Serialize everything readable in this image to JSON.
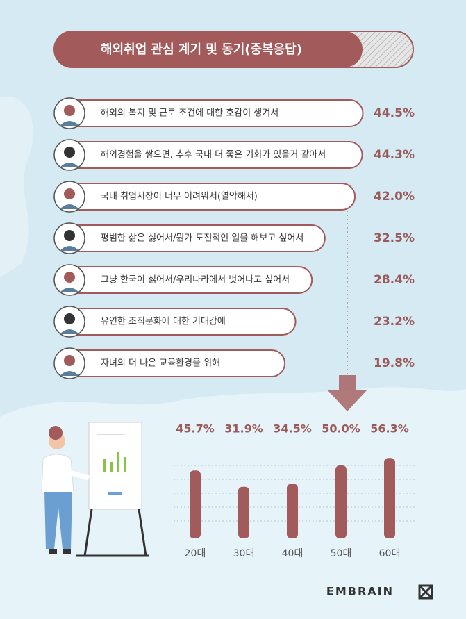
{
  "chart_data": [
    {
      "type": "hbar",
      "title": "해외취업 관심 계기 및 동기(중복응답)",
      "categories": [
        "해외의 복지 및 근로 조건에 대한 호감이 생겨서",
        "해외경험을 쌓으면, 추후 국내 더 좋은 기회가 있을거 같아서",
        "국내 취업시장이 너무 어려워서(열악해서)",
        "평범한 삶은 싫어서/뭔가 도전적인 일을 해보고 싶어서",
        "그냥 한국이 싫어서/우리나라에서 벗어나고 싶어서",
        "유연한 조직문화에 대한 기대감에",
        "자녀의 더 나은 교육환경을 위해"
      ],
      "values": [
        44.5,
        44.3,
        42.0,
        32.5,
        28.4,
        23.2,
        19.8
      ],
      "value_labels": [
        "44.5%",
        "44.3%",
        "42.0%",
        "32.5%",
        "28.4%",
        "23.2%",
        "19.8%"
      ],
      "color": "#a35a5a"
    },
    {
      "type": "bar",
      "categories": [
        "20대",
        "30대",
        "40대",
        "50대",
        "60대"
      ],
      "values": [
        45.7,
        31.9,
        34.5,
        50.0,
        56.3
      ],
      "value_labels": [
        "45.7%",
        "31.9%",
        "34.5%",
        "50.0%",
        "56.3%"
      ],
      "color": "#a35a5a"
    }
  ],
  "footer": {
    "brand": "EMBRAIN"
  }
}
